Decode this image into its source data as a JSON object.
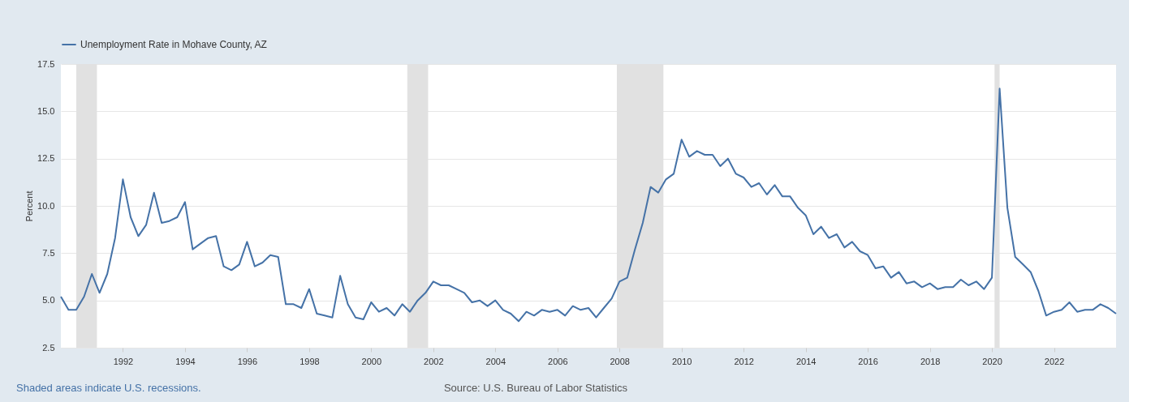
{
  "chart_data": {
    "type": "line",
    "ylabel": "Percent",
    "series": [
      {
        "name": "Unemployment Rate in Mohave County, AZ",
        "color": "#4572a7",
        "x": [
          "1990-01",
          "1990-04",
          "1990-07",
          "1990-10",
          "1991-01",
          "1991-04",
          "1991-07",
          "1991-10",
          "1992-01",
          "1992-04",
          "1992-07",
          "1992-10",
          "1993-01",
          "1993-04",
          "1993-07",
          "1993-10",
          "1994-01",
          "1994-04",
          "1994-07",
          "1994-10",
          "1995-01",
          "1995-04",
          "1995-07",
          "1995-10",
          "1996-01",
          "1996-04",
          "1996-07",
          "1996-10",
          "1997-01",
          "1997-04",
          "1997-07",
          "1997-10",
          "1998-01",
          "1998-04",
          "1998-07",
          "1998-10",
          "1999-01",
          "1999-04",
          "1999-07",
          "1999-10",
          "2000-01",
          "2000-04",
          "2000-07",
          "2000-10",
          "2001-01",
          "2001-04",
          "2001-07",
          "2001-10",
          "2002-01",
          "2002-04",
          "2002-07",
          "2002-10",
          "2003-01",
          "2003-04",
          "2003-07",
          "2003-10",
          "2004-01",
          "2004-04",
          "2004-07",
          "2004-10",
          "2005-01",
          "2005-04",
          "2005-07",
          "2005-10",
          "2006-01",
          "2006-04",
          "2006-07",
          "2006-10",
          "2007-01",
          "2007-04",
          "2007-07",
          "2007-10",
          "2008-01",
          "2008-04",
          "2008-07",
          "2008-10",
          "2009-01",
          "2009-04",
          "2009-07",
          "2009-10",
          "2010-01",
          "2010-04",
          "2010-07",
          "2010-10",
          "2011-01",
          "2011-04",
          "2011-07",
          "2011-10",
          "2012-01",
          "2012-04",
          "2012-07",
          "2012-10",
          "2013-01",
          "2013-04",
          "2013-07",
          "2013-10",
          "2014-01",
          "2014-04",
          "2014-07",
          "2014-10",
          "2015-01",
          "2015-04",
          "2015-07",
          "2015-10",
          "2016-01",
          "2016-04",
          "2016-07",
          "2016-10",
          "2017-01",
          "2017-04",
          "2017-07",
          "2017-10",
          "2018-01",
          "2018-04",
          "2018-07",
          "2018-10",
          "2019-01",
          "2019-04",
          "2019-07",
          "2019-10",
          "2020-01",
          "2020-04",
          "2020-07",
          "2020-10",
          "2021-01",
          "2021-04",
          "2021-07",
          "2021-10",
          "2022-01",
          "2022-04",
          "2022-07",
          "2022-10",
          "2023-01",
          "2023-04",
          "2023-07",
          "2023-10",
          "2024-01"
        ],
        "values": [
          5.2,
          4.5,
          4.5,
          5.2,
          6.4,
          5.4,
          6.4,
          8.3,
          11.4,
          9.4,
          8.4,
          9.0,
          10.7,
          9.1,
          9.2,
          9.4,
          10.2,
          7.7,
          8.0,
          8.3,
          8.4,
          6.8,
          6.6,
          6.9,
          8.1,
          6.8,
          7.0,
          7.4,
          7.3,
          4.8,
          4.8,
          4.6,
          5.6,
          4.3,
          4.2,
          4.1,
          6.3,
          4.8,
          4.1,
          4.0,
          4.9,
          4.4,
          4.6,
          4.2,
          4.8,
          4.4,
          5.0,
          5.4,
          6.0,
          5.8,
          5.8,
          5.6,
          5.4,
          4.9,
          5.0,
          4.7,
          5.0,
          4.5,
          4.3,
          3.9,
          4.4,
          4.2,
          4.5,
          4.4,
          4.5,
          4.2,
          4.7,
          4.5,
          4.6,
          4.1,
          4.6,
          5.1,
          6.0,
          6.2,
          7.7,
          9.1,
          11.0,
          10.7,
          11.4,
          11.7,
          13.5,
          12.6,
          12.9,
          12.7,
          12.7,
          12.1,
          12.5,
          11.7,
          11.5,
          11.0,
          11.2,
          10.6,
          11.1,
          10.5,
          10.5,
          9.9,
          9.5,
          8.5,
          8.9,
          8.3,
          8.5,
          7.8,
          8.1,
          7.6,
          7.4,
          6.7,
          6.8,
          6.2,
          6.5,
          5.9,
          6.0,
          5.7,
          5.9,
          5.6,
          5.7,
          5.7,
          6.1,
          5.8,
          6.0,
          5.6,
          6.2,
          16.2,
          9.9,
          7.3,
          6.9,
          6.5,
          5.5,
          4.2,
          4.4,
          4.5,
          4.9,
          4.4,
          4.5,
          4.5,
          4.8,
          4.6,
          4.3
        ]
      }
    ],
    "xlim": [
      "1990-01",
      "2024-01"
    ],
    "xticks": [
      "1992",
      "1994",
      "1996",
      "1998",
      "2000",
      "2002",
      "2004",
      "2006",
      "2008",
      "2010",
      "2012",
      "2014",
      "2016",
      "2018",
      "2020",
      "2022"
    ],
    "ylim": [
      2.5,
      17.5
    ],
    "yticks": [
      {
        "value": 2.5,
        "label": "2.5"
      },
      {
        "value": 5,
        "label": "5.0"
      },
      {
        "value": 7.5,
        "label": "7.5"
      },
      {
        "value": 10,
        "label": "10.0"
      },
      {
        "value": 12.5,
        "label": "12.5"
      },
      {
        "value": 15,
        "label": "15.0"
      },
      {
        "value": 17.5,
        "label": "17.5"
      }
    ],
    "bands": [
      {
        "axis": "x",
        "from": "1990-07",
        "to": "1991-03",
        "label": null,
        "color": "#e1e1e1"
      },
      {
        "axis": "x",
        "from": "2001-03",
        "to": "2001-11",
        "label": null,
        "color": "#e1e1e1"
      },
      {
        "axis": "x",
        "from": "2007-12",
        "to": "2009-06",
        "label": null,
        "color": "#e1e1e1"
      },
      {
        "axis": "x",
        "from": "2020-02",
        "to": "2020-04",
        "label": null,
        "color": "#e1e1e1"
      }
    ],
    "annotations": [
      "Shaded areas indicate U.S. recessions.",
      "Source: U.S. Bureau of Labor Statistics"
    ],
    "grid": "y",
    "legend": "top left",
    "marker": "none",
    "line_style": "solid"
  }
}
